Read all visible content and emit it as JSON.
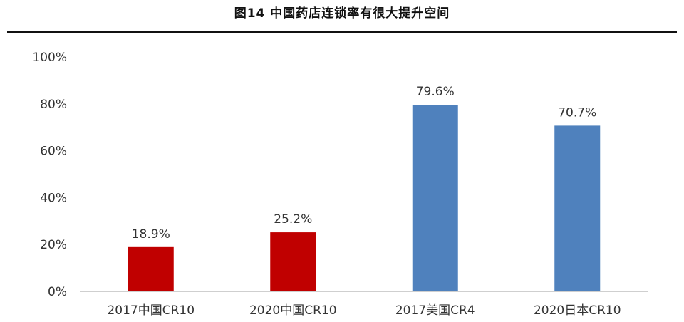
{
  "figure_title": "图14  中国药店连锁率有很大提升空间",
  "chart_data": {
    "type": "bar",
    "categories": [
      "2017中国CR10",
      "2020中国CR10",
      "2017美国CR4",
      "2020日本CR10"
    ],
    "values": [
      18.9,
      25.2,
      79.6,
      70.7
    ],
    "data_labels": [
      "18.9%",
      "25.2%",
      "79.6%",
      "70.7%"
    ],
    "bar_colors": [
      "#c00000",
      "#c00000",
      "#4f81bd",
      "#4f81bd"
    ],
    "ylim": [
      0,
      100
    ],
    "yticks": [
      0,
      20,
      40,
      60,
      80,
      100
    ],
    "ytick_labels": [
      "0%",
      "20%",
      "40%",
      "60%",
      "80%",
      "100%"
    ],
    "grid": false,
    "legend": "none"
  }
}
